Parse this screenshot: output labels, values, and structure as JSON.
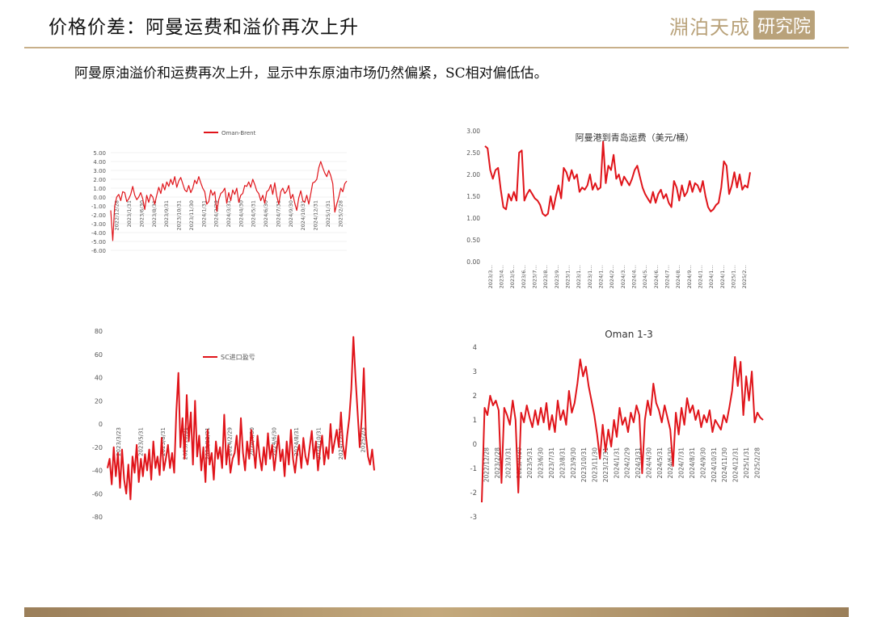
{
  "header": {
    "title": "价格价差：阿曼运费和溢价再次上升",
    "logo_text": "淵泊天成",
    "logo_box": "研究院"
  },
  "subtitle": "阿曼原油溢价和运费再次上升，显示中东原油市场仍然偏紧，SC相对偏低估。",
  "colors": {
    "accent": "#c8b08a",
    "series": "#e0141a",
    "footer": "#b9a27a"
  },
  "chart_data": [
    {
      "type": "line",
      "series": [
        {
          "name": "Oman-Brent"
        }
      ],
      "yticks": [
        "5.00",
        "4.00",
        "3.00",
        "2.00",
        "1.00",
        "0.00",
        "-1.00",
        "-2.00",
        "-3.00",
        "-4.00",
        "-5.00",
        "-6.00"
      ],
      "ylim": [
        -6,
        5
      ],
      "xticks": [
        "2022/12/28",
        "2023/1/31",
        "2023/6/30",
        "2023/8/31",
        "2023/9/31",
        "2023/10/31",
        "2023/11/30",
        "2024/1/31",
        "2024/2/29",
        "2024/3/31",
        "2024/4/30",
        "2024/5/31",
        "2024/6/30",
        "2024/7/31",
        "2024/9/30",
        "2024/10/31",
        "2024/12/31",
        "2025/1/31",
        "2025/2/28"
      ],
      "values": [
        -1.5,
        -4.9,
        -1,
        0,
        0.3,
        -0.4,
        0.6,
        0.5,
        -0.5,
        -0.2,
        0.3,
        1.2,
        0.2,
        -0.3,
        0,
        0.5,
        -0.2,
        -1.4,
        0.2,
        -0.6,
        0.3,
        0,
        -0.8,
        0.2,
        1.1,
        0.4,
        1.5,
        0.8,
        1.7,
        1.2,
        2,
        1.4,
        2.3,
        1.1,
        1.8,
        2.2,
        1.5,
        0.8,
        0.6,
        1.3,
        0.5,
        1,
        1.9,
        1.5,
        2.3,
        1.6,
        1,
        0.6,
        -0.8,
        -0.5,
        0.8,
        0.2,
        0.6,
        -1.6,
        -0.3,
        0.4,
        0.6,
        1,
        -0.7,
        0.5,
        -0.4,
        0.8,
        0.3,
        1,
        -0.6,
        0.2,
        0.4,
        1.3,
        1.2,
        1.7,
        1.1,
        2,
        1.4,
        0.7,
        0.4,
        -0.4,
        0.2,
        -0.7,
        0.6,
        0.8,
        1.4,
        0.3,
        1.6,
        0.1,
        -0.8,
        0.6,
        1,
        0.4,
        0.7,
        1.3,
        -0.2,
        0.3,
        -0.7,
        -1.5,
        -0.1,
        0.7,
        -0.4,
        -0.6,
        0.2,
        -0.8,
        0.4,
        1.6,
        1.7,
        2,
        3.3,
        4,
        3.3,
        2.7,
        2.3,
        3,
        2.4,
        1.5,
        -1.7,
        -0.8,
        0,
        1,
        0.6,
        1.5,
        1.8
      ]
    },
    {
      "type": "line",
      "title": "阿曼港到青岛运费（美元/桶）",
      "yticks": [
        "3.00",
        "2.50",
        "2.00",
        "1.50",
        "1.00",
        "0.50",
        "0.00"
      ],
      "ylim": [
        0,
        3
      ],
      "xticks": [
        "2023/3…",
        "2023/4…",
        "2023/5…",
        "2023/6…",
        "2023/7…",
        "2023/8…",
        "2023/9…",
        "2023/1…",
        "2023/1…",
        "2023/1…",
        "2024/1…",
        "2024/2…",
        "2024/3…",
        "2024/4…",
        "2024/5…",
        "2024/6…",
        "2024/7…",
        "2024/8…",
        "2024/9…",
        "2024/1…",
        "2024/1…",
        "2024/1…",
        "2025/1…",
        "2025/2…"
      ],
      "values": [
        2.65,
        2.6,
        2.1,
        1.9,
        2.1,
        2.15,
        1.65,
        1.25,
        1.2,
        1.55,
        1.4,
        1.6,
        1.4,
        2.5,
        2.55,
        1.4,
        1.55,
        1.65,
        1.55,
        1.45,
        1.4,
        1.3,
        1.1,
        1.05,
        1.1,
        1.5,
        1.2,
        1.5,
        1.75,
        1.45,
        2.15,
        2.05,
        1.85,
        2.1,
        1.9,
        2,
        1.6,
        1.7,
        1.65,
        1.75,
        2,
        1.65,
        1.8,
        1.65,
        1.7,
        2.75,
        1.8,
        2.2,
        2.1,
        2.45,
        1.9,
        2,
        1.75,
        1.95,
        1.85,
        1.75,
        1.9,
        2.1,
        2.2,
        1.95,
        1.7,
        1.55,
        1.45,
        1.35,
        1.6,
        1.35,
        1.55,
        1.65,
        1.45,
        1.55,
        1.35,
        1.25,
        1.85,
        1.7,
        1.4,
        1.75,
        1.5,
        1.6,
        1.85,
        1.6,
        1.8,
        1.75,
        1.6,
        1.85,
        1.5,
        1.25,
        1.15,
        1.2,
        1.3,
        1.35,
        1.7,
        2.3,
        2.2,
        1.55,
        1.75,
        2.05,
        1.7,
        2,
        1.65,
        1.75,
        1.7,
        2.05
      ]
    },
    {
      "type": "line",
      "series": [
        {
          "name": "SC进口盈亏"
        }
      ],
      "yticks": [
        "80",
        "60",
        "40",
        "20",
        "0",
        "-20",
        "-40",
        "-60",
        "-80"
      ],
      "ylim": [
        -80,
        80
      ],
      "xticks": [
        "2023/3/23",
        "2023/5/31",
        "2023/8/31",
        "2023/10/31",
        "2023/12/31",
        "2024/2/29",
        "2024/4/30",
        "2024/6/30",
        "2024/8/31",
        "2024/10/31",
        "2024/12/31",
        "2025/2/3"
      ],
      "values": [
        -38,
        -30,
        -52,
        -20,
        -45,
        -25,
        -55,
        -22,
        -48,
        -60,
        -35,
        -65,
        -28,
        -42,
        -18,
        -50,
        -30,
        -45,
        -26,
        -40,
        -22,
        -48,
        -15,
        -38,
        -28,
        -44,
        -12,
        -40,
        -30,
        -18,
        -38,
        -25,
        -42,
        10,
        44,
        -20,
        5,
        -30,
        25,
        -15,
        10,
        -35,
        20,
        -28,
        -10,
        -40,
        -20,
        -50,
        -5,
        -35,
        -25,
        -48,
        -15,
        -30,
        -20,
        -38,
        8,
        -35,
        -18,
        -42,
        -30,
        -25,
        -10,
        -35,
        5,
        -25,
        -40,
        -15,
        -30,
        -5,
        -20,
        -38,
        -10,
        -28,
        -40,
        -20,
        -35,
        -8,
        -30,
        -18,
        -40,
        -25,
        -10,
        -32,
        -22,
        -45,
        -15,
        -35,
        -5,
        -30,
        -42,
        -25,
        -18,
        -38,
        -12,
        -28,
        -35,
        -20,
        -6,
        -30,
        -15,
        -40,
        -22,
        -10,
        -35,
        -20,
        -30,
        0,
        -25,
        -15,
        -5,
        -20,
        10,
        -18,
        -30,
        -10,
        5,
        30,
        75,
        40,
        10,
        -20,
        5,
        48,
        -10,
        -28,
        -35,
        -22,
        -40
      ]
    },
    {
      "type": "line",
      "title": "Oman 1-3",
      "yticks": [
        "4",
        "3",
        "2",
        "1",
        "0",
        "-1",
        "-2",
        "-3"
      ],
      "ylim": [
        -3,
        4
      ],
      "xticks": [
        "2022/12/28",
        "2023/2/28",
        "2023/3/31",
        "2023/4/30",
        "2023/5/31",
        "2023/6/30",
        "2023/7/31",
        "2023/8/31",
        "2023/9/30",
        "2023/10/31",
        "2023/11/30",
        "2023/12/31",
        "2024/1/31",
        "2024/2/29",
        "2024/3/31",
        "2024/4/30",
        "2024/5/31",
        "2024/6/30",
        "2024/7/31",
        "2024/8/31",
        "2024/9/30",
        "2024/10/31",
        "2024/11/30",
        "2024/12/31",
        "2025/1/31",
        "2025/2/28"
      ],
      "values": [
        -2.4,
        1.5,
        1.2,
        2,
        1.6,
        1.8,
        1.4,
        -1.6,
        1.5,
        1.2,
        0.8,
        1.8,
        1,
        -2,
        1.3,
        0.9,
        1.6,
        1.1,
        0.7,
        1.4,
        0.8,
        1.5,
        0.9,
        1.7,
        0.6,
        1.2,
        0.5,
        1.8,
        1,
        1.4,
        0.8,
        2.2,
        1.3,
        1.7,
        2.5,
        3.5,
        2.8,
        3.2,
        2.4,
        1.8,
        1.2,
        0.4,
        -0.6,
        0.8,
        -0.3,
        0.6,
        -0.1,
        1,
        0.3,
        1.5,
        0.8,
        1.1,
        0.5,
        1.3,
        0.9,
        1.6,
        1.2,
        -1.2,
        1,
        1.8,
        1.2,
        2.5,
        1.7,
        1.4,
        0.9,
        1.6,
        1.1,
        0.6,
        -0.9,
        1.3,
        0.4,
        1.5,
        0.8,
        1.9,
        1.3,
        1.6,
        1,
        1.4,
        0.7,
        1.2,
        0.9,
        1.4,
        0.5,
        1,
        0.8,
        0.6,
        1.2,
        0.9,
        1.5,
        2.2,
        3.6,
        2.4,
        3.4,
        1.2,
        2.8,
        1.8,
        3,
        0.9,
        1.3,
        1.1,
        1
      ]
    }
  ]
}
